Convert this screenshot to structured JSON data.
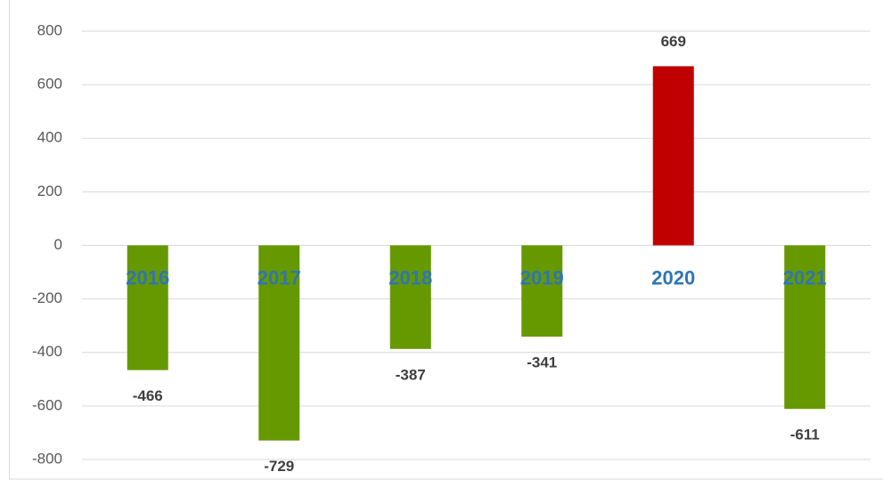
{
  "chart_data": {
    "type": "bar",
    "categories": [
      "2016",
      "2017",
      "2018",
      "2019",
      "2020",
      "2021"
    ],
    "values": [
      -466,
      -729,
      -387,
      -341,
      669,
      -611
    ],
    "colors": [
      "#669900",
      "#669900",
      "#669900",
      "#669900",
      "#c00000",
      "#669900"
    ],
    "ylim": [
      -800,
      800
    ],
    "yticks": [
      -800,
      -600,
      -400,
      -200,
      0,
      200,
      400,
      600,
      800
    ],
    "grid": true
  }
}
